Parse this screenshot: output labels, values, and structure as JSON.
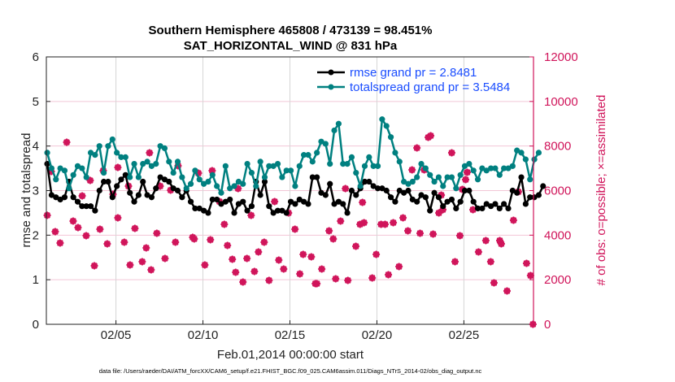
{
  "chart_data": {
    "type": "line",
    "title": [
      "Southern Hemisphere 465808 / 473139 = 98.451%",
      "SAT_HORIZONTAL_WIND @ 831 hPa"
    ],
    "xlabel": "Feb.01,2014 00:00:00 start",
    "ylabel": "rmse and totalspread",
    "ylabel_right": "# of obs: o=possible; ×=assimilated",
    "footer": "data file: /Users/raeder/DAI/ATM_forcXX/CAM6_setup/f.e21.FHIST_BGC.f09_025.CAM6assim.011/Diags_NTrS_2014-02/obs_diag_output.nc",
    "xlim_days": [
      0,
      28
    ],
    "ylim": [
      0,
      6
    ],
    "ylim_right": [
      0,
      12000
    ],
    "xticks": [
      {
        "day": 4,
        "label": "02/05"
      },
      {
        "day": 9,
        "label": "02/10"
      },
      {
        "day": 14,
        "label": "02/15"
      },
      {
        "day": 19,
        "label": "02/20"
      },
      {
        "day": 24,
        "label": "02/25"
      }
    ],
    "yticks": [
      "0",
      "1",
      "2",
      "3",
      "4",
      "5",
      "6"
    ],
    "yticks_right": [
      "0",
      "2000",
      "4000",
      "6000",
      "8000",
      "10000",
      "12000"
    ],
    "grid": true,
    "legend_position": "top-right",
    "x_start_day": 0.05,
    "x_step_day": 0.25,
    "colors": {
      "rmse": "#000000",
      "spread": "#008080",
      "obs": "#d0145a",
      "legend_text": "#1a4dff",
      "grid_h": "#f2c6d6",
      "grid_v": "#d6d6d6"
    },
    "series": [
      {
        "name": "rmse grand pr = 2.8481",
        "key": "rmse",
        "values": [
          3.6,
          2.9,
          2.85,
          2.8,
          2.85,
          3.2,
          2.85,
          2.75,
          2.65,
          2.65,
          2.65,
          2.55,
          3.0,
          3.2,
          3.2,
          2.85,
          3.1,
          3.25,
          3.35,
          2.95,
          2.75,
          2.9,
          3.2,
          2.9,
          2.85,
          3.05,
          3.3,
          3.25,
          3.2,
          3.05,
          3.0,
          2.85,
          3.0,
          2.75,
          2.6,
          2.6,
          2.55,
          2.5,
          2.8,
          2.8,
          2.7,
          2.75,
          2.8,
          2.5,
          2.7,
          2.75,
          2.55,
          2.65,
          3.2,
          2.9,
          3.2,
          2.65,
          2.5,
          2.55,
          2.55,
          2.5,
          2.75,
          2.7,
          2.8,
          2.75,
          2.7,
          3.3,
          3.3,
          2.95,
          2.9,
          3.15,
          2.7,
          2.75,
          2.7,
          2.5,
          3.0,
          2.9,
          3.05,
          3.2,
          3.2,
          3.1,
          3.05,
          3.05,
          3.0,
          2.85,
          2.75,
          3.0,
          2.95,
          3.0,
          2.8,
          2.75,
          2.9,
          2.85,
          2.55,
          2.95,
          2.85,
          2.65,
          2.75,
          2.8,
          2.6,
          2.75,
          3.0,
          3.0,
          2.75,
          2.6,
          2.6,
          2.7,
          2.65,
          2.7,
          2.6,
          2.7,
          2.6,
          3.0,
          2.95,
          3.3,
          2.7,
          2.85,
          2.85,
          2.9,
          3.1
        ]
      },
      {
        "name": "totalspread grand pr = 3.5484",
        "key": "spread",
        "values": [
          3.85,
          3.5,
          3.25,
          3.5,
          3.45,
          3.05,
          3.35,
          3.55,
          3.5,
          3.3,
          3.85,
          3.8,
          4.0,
          3.4,
          4.0,
          4.15,
          3.85,
          3.75,
          3.75,
          3.3,
          3.6,
          3.3,
          3.6,
          3.65,
          3.55,
          3.6,
          4.0,
          3.95,
          3.65,
          3.4,
          3.65,
          3.3,
          3.05,
          3.15,
          3.45,
          3.25,
          3.15,
          3.2,
          3.35,
          3.1,
          2.95,
          3.55,
          3.05,
          3.1,
          3.2,
          3.15,
          3.6,
          3.4,
          3.1,
          3.65,
          3.3,
          3.55,
          3.55,
          3.6,
          3.3,
          3.45,
          3.45,
          3.1,
          3.55,
          3.8,
          3.8,
          3.65,
          3.85,
          4.1,
          4.05,
          3.6,
          4.35,
          4.5,
          3.6,
          3.6,
          3.75,
          3.4,
          3.1,
          3.55,
          3.75,
          3.55,
          3.55,
          4.6,
          4.45,
          4.2,
          3.85,
          3.65,
          3.2,
          3.15,
          3.2,
          3.3,
          3.6,
          3.5,
          3.35,
          3.2,
          3.3,
          3.1,
          3.3,
          3.3,
          3.05,
          3.35,
          3.55,
          3.6,
          3.45,
          3.25,
          3.5,
          3.45,
          3.5,
          3.5,
          3.35,
          3.5,
          3.5,
          3.55,
          3.9,
          3.85,
          3.7,
          3.25,
          3.7,
          3.85
        ]
      }
    ],
    "obs_counts": [
      [
        0.05,
        4890
      ],
      [
        0.28,
        6856
      ],
      [
        0.51,
        4158
      ],
      [
        0.79,
        3647
      ],
      [
        1.17,
        8169
      ],
      [
        1.54,
        4632
      ],
      [
        1.82,
        4340
      ],
      [
        2.06,
        5762
      ],
      [
        2.29,
        3975
      ],
      [
        2.52,
        6455
      ],
      [
        2.76,
        2626
      ],
      [
        3.08,
        4267
      ],
      [
        3.27,
        6893
      ],
      [
        3.5,
        3610
      ],
      [
        3.83,
        5835
      ],
      [
        4.11,
        7039
      ],
      [
        4.11,
        4778
      ],
      [
        4.48,
        3683
      ],
      [
        4.72,
        6200
      ],
      [
        4.81,
        2662
      ],
      [
        5.09,
        4303
      ],
      [
        5.51,
        2808
      ],
      [
        5.74,
        3428
      ],
      [
        5.93,
        7695
      ],
      [
        6.02,
        2443
      ],
      [
        6.35,
        4085
      ],
      [
        6.54,
        6200
      ],
      [
        6.82,
        2954
      ],
      [
        7.14,
        6018
      ],
      [
        7.42,
        3683
      ],
      [
        7.57,
        7112
      ],
      [
        8.41,
        3902
      ],
      [
        8.5,
        3829
      ],
      [
        8.74,
        6783
      ],
      [
        9.11,
        2662
      ],
      [
        9.43,
        3793
      ],
      [
        9.53,
        6893
      ],
      [
        9.95,
        5507
      ],
      [
        10.23,
        4486
      ],
      [
        10.41,
        3538
      ],
      [
        10.69,
        2918
      ],
      [
        10.88,
        2334
      ],
      [
        11.02,
        6090
      ],
      [
        11.3,
        1896
      ],
      [
        11.53,
        2954
      ],
      [
        11.77,
        4887
      ],
      [
        11.96,
        2371
      ],
      [
        12.19,
        3246
      ],
      [
        12.52,
        3683
      ],
      [
        12.8,
        1969
      ],
      [
        13.12,
        5507
      ],
      [
        13.36,
        2881
      ],
      [
        13.64,
        2480
      ],
      [
        13.92,
        4996
      ],
      [
        14.29,
        4267
      ],
      [
        14.57,
        2261
      ],
      [
        14.76,
        3136
      ],
      [
        15.23,
        3027
      ],
      [
        15.46,
        1824
      ],
      [
        15.55,
        1824
      ],
      [
        15.83,
        2480
      ],
      [
        16.25,
        4194
      ],
      [
        16.49,
        3829
      ],
      [
        16.63,
        2042
      ],
      [
        16.91,
        4632
      ],
      [
        17.19,
        6090
      ],
      [
        17.33,
        1969
      ],
      [
        17.79,
        3501
      ],
      [
        18.03,
        4486
      ],
      [
        18.17,
        5471
      ],
      [
        18.26,
        4559
      ],
      [
        18.73,
        2079
      ],
      [
        18.96,
        3136
      ],
      [
        19.24,
        4486
      ],
      [
        19.47,
        4486
      ],
      [
        19.66,
        2225
      ],
      [
        19.94,
        4559
      ],
      [
        20.27,
        2589
      ],
      [
        20.5,
        4778
      ],
      [
        20.78,
        4194
      ],
      [
        21.02,
        6929
      ],
      [
        21.3,
        7914
      ],
      [
        21.48,
        4085
      ],
      [
        21.72,
        6929
      ],
      [
        21.95,
        8388
      ],
      [
        22.09,
        8461
      ],
      [
        22.23,
        4048
      ],
      [
        22.56,
        4996
      ],
      [
        22.7,
        5799
      ],
      [
        22.79,
        5142
      ],
      [
        23.3,
        7695
      ],
      [
        23.49,
        2808
      ],
      [
        23.77,
        3975
      ],
      [
        23.91,
        6054
      ],
      [
        24.1,
        6491
      ],
      [
        24.19,
        6820
      ],
      [
        24.52,
        5142
      ],
      [
        24.84,
        3246
      ],
      [
        25.26,
        3756
      ],
      [
        25.54,
        2808
      ],
      [
        25.73,
        1860
      ],
      [
        26.06,
        3756
      ],
      [
        26.15,
        3610
      ],
      [
        26.48,
        1495
      ],
      [
        26.85,
        4668
      ],
      [
        27.13,
        5945
      ],
      [
        27.6,
        2735
      ],
      [
        27.83,
        2188
      ],
      [
        27.97,
        0
      ]
    ]
  }
}
